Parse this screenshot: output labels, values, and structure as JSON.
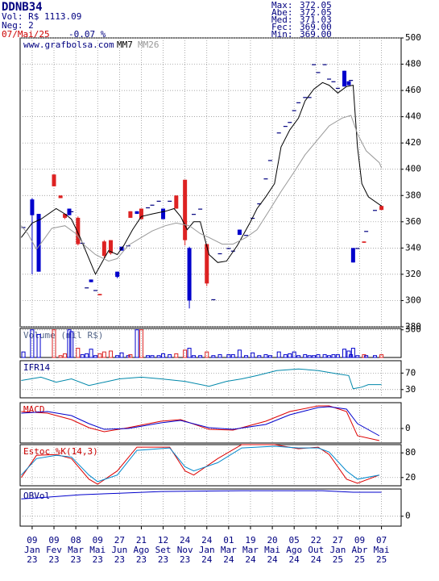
{
  "header": {
    "ticker": "DDNB34",
    "volume": "Vol: R$ 1113.09",
    "trades": "Neg: 2",
    "date": "07/Mai/25",
    "change": "-0.07 %",
    "stats": [
      {
        "label": "Max:",
        "value": "372.05"
      },
      {
        "label": "Abe:",
        "value": "372.05"
      },
      {
        "label": "Med:",
        "value": "371.03"
      },
      {
        "label": "Fec:",
        "value": "369.00"
      },
      {
        "label": "Min:",
        "value": "369.00"
      }
    ]
  },
  "chart_data": [
    {
      "type": "candlestick",
      "title": "www.grafbolsa.com",
      "title_color": "#000080",
      "grid": true,
      "xlim": [
        -0.5,
        174
      ],
      "ylim": [
        280,
        500
      ],
      "yticks": [
        280,
        300,
        320,
        340,
        360,
        380,
        400,
        420,
        440,
        460,
        480,
        500
      ],
      "xticks": [
        5,
        15,
        25,
        35,
        45,
        55,
        65,
        75,
        85,
        95,
        105,
        115,
        125,
        135,
        145,
        155,
        165
      ],
      "xtick_labels": [
        [
          "09",
          "Jan",
          "23"
        ],
        [
          "09",
          "Fev",
          "23"
        ],
        [
          "08",
          "Mar",
          "23"
        ],
        [
          "09",
          "Mai",
          "23"
        ],
        [
          "27",
          "Jun",
          "23"
        ],
        [
          "21",
          "Ago",
          "23"
        ],
        [
          "12",
          "Set",
          "23"
        ],
        [
          "24",
          "Nov",
          "23"
        ],
        [
          "24",
          "Jan",
          "24"
        ],
        [
          "01",
          "Mar",
          "24"
        ],
        [
          "19",
          "Mar",
          "24"
        ],
        [
          "20",
          "Mai",
          "24"
        ],
        [
          "05",
          "Ago",
          "24"
        ],
        [
          "22",
          "Out",
          "24"
        ],
        [
          "27",
          "Jan",
          "25"
        ],
        [
          "09",
          "Abr",
          "25"
        ],
        [
          "07",
          "Mai",
          "25"
        ]
      ],
      "up_color": "#0000cc",
      "down_color": "#dd2222",
      "flat_color": "#000080",
      "x": [
        1,
        5,
        8,
        15,
        18,
        20,
        22,
        23,
        26,
        28,
        30,
        32,
        34,
        36,
        38,
        41,
        44,
        46,
        49,
        50,
        53,
        55,
        58,
        60,
        63,
        65,
        68,
        71,
        75,
        77,
        79,
        82,
        85,
        88,
        91,
        95,
        97,
        100,
        103,
        106,
        109,
        112,
        114,
        118,
        121,
        123,
        125,
        127,
        130,
        132,
        134,
        136,
        139,
        141,
        143,
        145,
        148,
        150,
        151,
        152,
        154,
        157,
        158,
        162,
        165
      ],
      "open": [
        356,
        365,
        322,
        396,
        380,
        366,
        365,
        368,
        363,
        344,
        310,
        314,
        308,
        305,
        345,
        346,
        318,
        338,
        342,
        368,
        366,
        370,
        371,
        373,
        376,
        362,
        376,
        380,
        392,
        300,
        366,
        370,
        343,
        301,
        336,
        340,
        338,
        350,
        350,
        363,
        374,
        393,
        407,
        428,
        433,
        436,
        445,
        451,
        455,
        455,
        480,
        474,
        480,
        469,
        467,
        462,
        463,
        464,
        468,
        329,
        340,
        345,
        353,
        369,
        372.05
      ],
      "high": [
        356,
        378,
        366,
        396,
        380,
        366,
        370,
        368,
        364,
        344,
        310,
        316,
        308,
        305,
        346,
        346,
        322,
        341,
        342,
        368,
        368,
        370,
        371,
        373,
        376,
        370,
        376,
        380,
        392,
        341,
        366,
        370,
        343,
        301,
        336,
        340,
        338,
        354,
        350,
        363,
        374,
        393,
        407,
        428,
        433,
        436,
        445,
        451,
        455,
        455,
        480,
        474,
        480,
        469,
        467,
        462,
        475,
        467,
        468,
        340,
        340,
        345,
        353,
        369,
        372.05
      ],
      "low": [
        356,
        320,
        322,
        387,
        378,
        362,
        365,
        368,
        342,
        344,
        310,
        314,
        308,
        304,
        332,
        335,
        317,
        338,
        342,
        363,
        366,
        362,
        371,
        373,
        376,
        362,
        376,
        370,
        342,
        294,
        366,
        370,
        311,
        301,
        336,
        340,
        338,
        350,
        350,
        363,
        374,
        393,
        407,
        428,
        433,
        436,
        445,
        451,
        455,
        455,
        480,
        474,
        480,
        469,
        467,
        462,
        463,
        464,
        468,
        329,
        340,
        344,
        353,
        369,
        369
      ],
      "close": [
        356,
        377,
        366,
        387,
        378,
        363,
        370,
        368,
        343,
        344,
        310,
        316,
        308,
        304,
        334,
        336,
        322,
        341,
        342,
        363,
        368,
        362,
        371,
        373,
        376,
        370,
        376,
        370,
        346,
        340,
        366,
        370,
        313,
        301,
        336,
        340,
        338,
        354,
        350,
        363,
        374,
        393,
        407,
        428,
        433,
        436,
        445,
        451,
        455,
        455,
        480,
        474,
        480,
        469,
        467,
        462,
        475,
        467,
        468,
        340,
        340,
        344,
        353,
        369,
        369
      ],
      "series": [
        {
          "name": "MM7",
          "color": "#000000",
          "x": [
            0,
            5,
            9,
            16,
            20,
            23,
            27,
            31,
            34,
            37,
            40,
            44,
            47,
            51,
            55,
            60,
            66,
            70,
            73,
            76,
            79,
            82,
            86,
            90,
            94,
            99,
            105,
            108,
            112,
            116,
            119,
            123,
            127,
            130,
            134,
            138,
            141,
            145,
            149,
            152,
            154,
            156,
            159,
            165
          ],
          "values": [
            348,
            359,
            362,
            370,
            366,
            362,
            348,
            332,
            320,
            329,
            338,
            335,
            342,
            354,
            364,
            366,
            368,
            370,
            364,
            354,
            360,
            360,
            335,
            329,
            330,
            342,
            360,
            370,
            379,
            389,
            417,
            430,
            439,
            452,
            461,
            466,
            464,
            458,
            463,
            464,
            417,
            389,
            379,
            372
          ]
        },
        {
          "name": "MM26",
          "color": "#999999",
          "x": [
            0,
            3,
            7,
            11,
            14,
            20,
            25,
            29,
            34,
            40,
            44,
            49,
            55,
            60,
            66,
            71,
            77,
            82,
            86,
            92,
            97,
            103,
            108,
            113,
            119,
            125,
            130,
            136,
            141,
            147,
            151,
            154,
            158,
            164,
            165
          ],
          "values": [
            357,
            351,
            339,
            348,
            355,
            357,
            351,
            342,
            335,
            330,
            332,
            342,
            348,
            353,
            357,
            359,
            357,
            351,
            348,
            343,
            343,
            348,
            354,
            367,
            383,
            398,
            411,
            423,
            433,
            439,
            441,
            427,
            414,
            405,
            401
          ]
        }
      ]
    },
    {
      "type": "bar",
      "title": "Volume (mil R$)",
      "title_color": "#556688",
      "grid": true,
      "xlim": [
        -0.5,
        174
      ],
      "ylim": [
        0,
        315
      ],
      "yticks": [
        300
      ],
      "x": [
        1,
        5,
        8,
        15,
        18,
        20,
        22,
        23,
        26,
        28,
        30,
        32,
        34,
        36,
        38,
        41,
        44,
        46,
        49,
        50,
        53,
        55,
        58,
        60,
        63,
        65,
        68,
        71,
        75,
        77,
        79,
        82,
        85,
        88,
        91,
        95,
        97,
        100,
        103,
        106,
        109,
        112,
        114,
        118,
        121,
        123,
        125,
        127,
        130,
        132,
        134,
        136,
        139,
        141,
        143,
        145,
        148,
        150,
        151,
        152,
        154,
        157,
        158,
        162,
        165
      ],
      "values": [
        60,
        300,
        250,
        300,
        20,
        40,
        300,
        280,
        100,
        30,
        40,
        90,
        20,
        40,
        60,
        70,
        20,
        50,
        20,
        30,
        300,
        300,
        20,
        20,
        20,
        40,
        30,
        40,
        80,
        100,
        20,
        20,
        60,
        20,
        30,
        30,
        30,
        80,
        20,
        50,
        20,
        30,
        20,
        60,
        30,
        40,
        60,
        20,
        30,
        20,
        20,
        30,
        30,
        20,
        30,
        30,
        90,
        70,
        30,
        100,
        20,
        30,
        20,
        20,
        30
      ]
    },
    {
      "type": "line",
      "title": "IFR14",
      "title_color": "#000080",
      "grid": true,
      "xlim": [
        -0.5,
        174
      ],
      "ylim": [
        10,
        100
      ],
      "yticks": [
        30,
        70
      ],
      "series": [
        {
          "color": "#0088aa",
          "x": [
            0,
            9,
            16,
            23,
            31,
            38,
            45,
            55,
            64,
            75,
            86,
            94,
            101,
            108,
            117,
            127,
            136,
            145,
            150,
            152,
            156,
            159,
            165
          ],
          "values": [
            52,
            60,
            48,
            56,
            40,
            48,
            56,
            60,
            56,
            50,
            38,
            50,
            56,
            64,
            76,
            80,
            76,
            68,
            64,
            32,
            36,
            42,
            42
          ]
        }
      ]
    },
    {
      "type": "line",
      "title": "MACD",
      "title_color": "#cc0000",
      "grid": true,
      "xlim": [
        -0.5,
        174
      ],
      "ylim": [
        -9,
        16
      ],
      "yticks": [
        0
      ],
      "series": [
        {
          "color": "#dd0000",
          "x": [
            0,
            12,
            23,
            31,
            38,
            49,
            64,
            73,
            86,
            97,
            112,
            123,
            136,
            141,
            149,
            154,
            164
          ],
          "values": [
            10.5,
            9.5,
            5.5,
            0.5,
            -2,
            0.5,
            4.5,
            5.5,
            -0.5,
            -1,
            4.5,
            10.5,
            14,
            14,
            10.5,
            -4.5,
            -7.5
          ]
        },
        {
          "color": "#0000cc",
          "x": [
            0,
            12,
            23,
            31,
            38,
            49,
            64,
            73,
            86,
            97,
            112,
            123,
            136,
            141,
            149,
            154,
            164
          ],
          "values": [
            9.5,
            10.5,
            8,
            3,
            -0.5,
            0,
            3.5,
            5,
            0.5,
            -0.5,
            2.5,
            8.5,
            13,
            13.5,
            12,
            3,
            -4.5
          ]
        }
      ]
    },
    {
      "type": "line",
      "title": "Estoc %K(14,3)",
      "title_color": "#cc0000",
      "grid": true,
      "xlim": [
        -0.5,
        174
      ],
      "ylim": [
        0,
        100
      ],
      "yticks": [
        20,
        80
      ],
      "series": [
        {
          "color": "#dd0000",
          "x": [
            0,
            7,
            16,
            23,
            31,
            35,
            44,
            53,
            68,
            75,
            79,
            90,
            101,
            116,
            127,
            136,
            141,
            149,
            154,
            164
          ],
          "values": [
            20,
            74,
            76,
            66,
            16,
            4,
            36,
            94,
            94,
            36,
            26,
            66,
            100,
            100,
            90,
            94,
            76,
            16,
            6,
            26
          ]
        },
        {
          "color": "#0088cc",
          "x": [
            0,
            7,
            16,
            23,
            31,
            35,
            44,
            53,
            68,
            75,
            79,
            90,
            101,
            116,
            127,
            136,
            141,
            149,
            154,
            164
          ],
          "values": [
            26,
            66,
            74,
            70,
            26,
            10,
            26,
            86,
            92,
            46,
            36,
            56,
            92,
            96,
            92,
            92,
            82,
            36,
            16,
            26
          ]
        }
      ]
    },
    {
      "type": "line",
      "title": "OBVol",
      "title_color": "#000080",
      "grid": true,
      "xlim": [
        -0.5,
        174
      ],
      "ylim": [
        -4,
        11
      ],
      "yticks": [
        0
      ],
      "series": [
        {
          "color": "#0000cc",
          "x": [
            0,
            12,
            27,
            45,
            64,
            101,
            138,
            152,
            165
          ],
          "values": [
            7,
            7.7,
            8.7,
            9.3,
            10,
            10.3,
            10.3,
            9.7,
            9.7
          ]
        }
      ]
    }
  ]
}
